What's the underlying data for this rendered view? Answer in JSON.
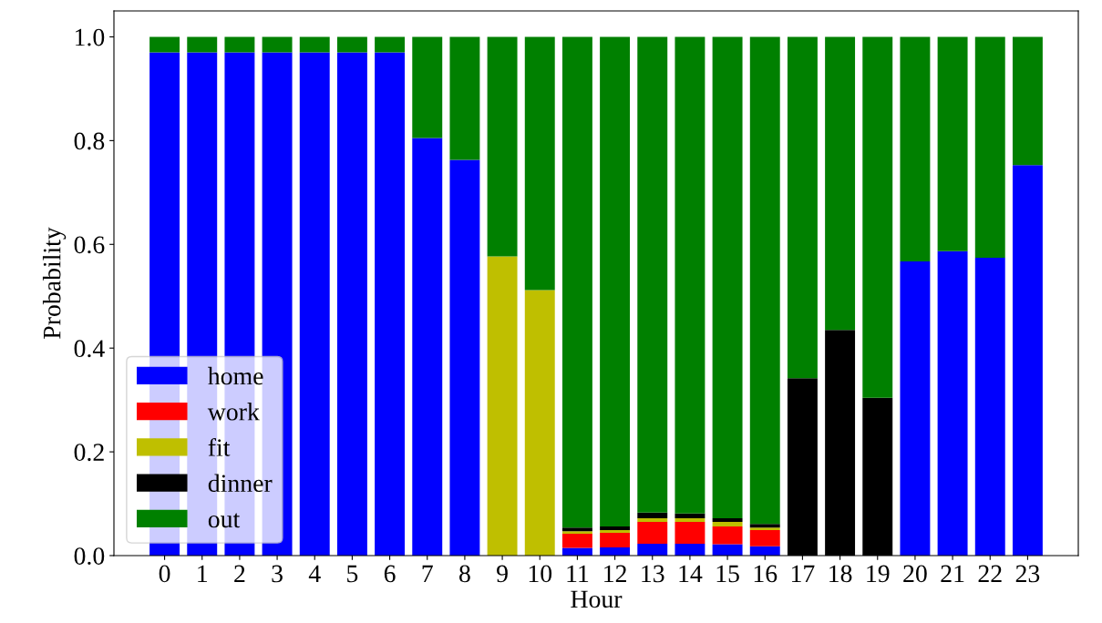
{
  "chart_data": {
    "type": "bar",
    "stacked": true,
    "xlabel": "Hour",
    "ylabel": "Probability",
    "categories": [
      "0",
      "1",
      "2",
      "3",
      "4",
      "5",
      "6",
      "7",
      "8",
      "9",
      "10",
      "11",
      "12",
      "13",
      "14",
      "15",
      "16",
      "17",
      "18",
      "19",
      "20",
      "21",
      "22",
      "23"
    ],
    "series": [
      {
        "name": "home",
        "color": "#0000ff",
        "values": [
          0.97,
          0.97,
          0.97,
          0.97,
          0.97,
          0.97,
          0.97,
          0.805,
          0.763,
          0,
          0,
          0.015,
          0.016,
          0.023,
          0.023,
          0.022,
          0.018,
          0,
          0,
          0,
          0.567,
          0.587,
          0.574,
          0.753
        ]
      },
      {
        "name": "work",
        "color": "#ff0000",
        "values": [
          0,
          0,
          0,
          0,
          0,
          0,
          0,
          0,
          0,
          0,
          0,
          0.027,
          0.028,
          0.042,
          0.042,
          0.034,
          0.031,
          0,
          0,
          0,
          0,
          0,
          0,
          0
        ]
      },
      {
        "name": "fit",
        "color": "#bfbf00",
        "values": [
          0,
          0,
          0,
          0,
          0,
          0,
          0,
          0,
          0,
          0.577,
          0.512,
          0.005,
          0.005,
          0.007,
          0.007,
          0.009,
          0.005,
          0,
          0,
          0,
          0,
          0,
          0,
          0
        ]
      },
      {
        "name": "dinner",
        "color": "#000000",
        "values": [
          0,
          0,
          0,
          0,
          0,
          0,
          0,
          0,
          0,
          0,
          0,
          0.007,
          0.007,
          0.011,
          0.009,
          0.007,
          0.007,
          0.342,
          0.435,
          0.304,
          0,
          0,
          0,
          0
        ]
      },
      {
        "name": "out",
        "color": "#008000",
        "values": [
          0.03,
          0.03,
          0.03,
          0.03,
          0.03,
          0.03,
          0.03,
          0.195,
          0.237,
          0.423,
          0.488,
          0.946,
          0.944,
          0.917,
          0.919,
          0.928,
          0.939,
          0.658,
          0.565,
          0.696,
          0.433,
          0.413,
          0.426,
          0.247
        ]
      }
    ],
    "ylim": [
      0,
      1.05
    ],
    "yticks": [
      {
        "value": 0,
        "label": "0.0"
      },
      {
        "value": 0.2,
        "label": "0.2"
      },
      {
        "value": 0.4,
        "label": "0.4"
      },
      {
        "value": 0.6,
        "label": "0.6"
      },
      {
        "value": 0.8,
        "label": "0.8"
      },
      {
        "value": 1,
        "label": "1.0"
      }
    ],
    "legend": "lower left"
  }
}
